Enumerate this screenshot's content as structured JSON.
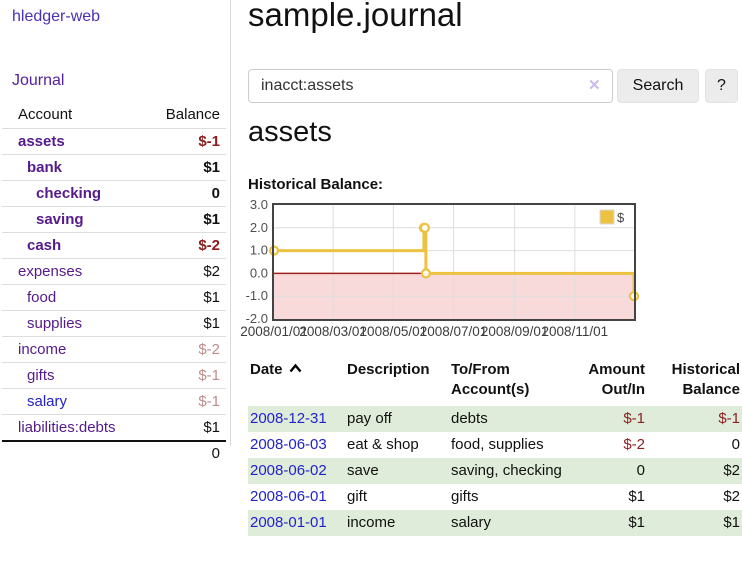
{
  "colors": {
    "brand_purple": "#4a30b4",
    "link_purple": "#551a8b",
    "link_blue": "#2222cc",
    "negative_dark": "#8c1b1b",
    "negative_soft": "#bd8c8c",
    "row_green": "#dfecd9",
    "chart_gold": "#edc240",
    "chart_negative_fill": "#f9dada",
    "chart_zero_line": "#a02020"
  },
  "sidebar": {
    "brand": "hledger-web",
    "journal_label": "Journal",
    "header": {
      "account": "Account",
      "balance": "Balance"
    },
    "rows": [
      {
        "name": "assets",
        "balance": "$-1",
        "depth": 1,
        "emphasis": true,
        "balance_style": "negative",
        "name_style": "purple"
      },
      {
        "name": "bank",
        "balance": "$1",
        "depth": 2,
        "emphasis": true,
        "balance_style": "normal",
        "name_style": "purple"
      },
      {
        "name": "checking",
        "balance": "0",
        "depth": 3,
        "emphasis": true,
        "balance_style": "normal",
        "name_style": "purple"
      },
      {
        "name": "saving",
        "balance": "$1",
        "depth": 3,
        "emphasis": true,
        "balance_style": "normal",
        "name_style": "purple"
      },
      {
        "name": "cash",
        "balance": "$-2",
        "depth": 2,
        "emphasis": true,
        "balance_style": "negative",
        "name_style": "purple"
      },
      {
        "name": "expenses",
        "balance": "$2",
        "depth": 1,
        "emphasis": false,
        "balance_style": "normal",
        "name_style": "purple"
      },
      {
        "name": "food",
        "balance": "$1",
        "depth": 2,
        "emphasis": false,
        "balance_style": "normal",
        "name_style": "purple"
      },
      {
        "name": "supplies",
        "balance": "$1",
        "depth": 2,
        "emphasis": false,
        "balance_style": "normal",
        "name_style": "purple"
      },
      {
        "name": "income",
        "balance": "$-2",
        "depth": 1,
        "emphasis": false,
        "balance_style": "negative-soft",
        "name_style": "purple"
      },
      {
        "name": "gifts",
        "balance": "$-1",
        "depth": 2,
        "emphasis": false,
        "balance_style": "negative-soft",
        "name_style": "purple"
      },
      {
        "name": "salary",
        "balance": "$-1",
        "depth": 2,
        "emphasis": false,
        "balance_style": "negative-soft",
        "name_style": "blue"
      },
      {
        "name": "liabilities:debts",
        "balance": "$1",
        "depth": 1,
        "emphasis": false,
        "balance_style": "normal",
        "name_style": "purple"
      }
    ],
    "total": "0"
  },
  "main": {
    "title": "sample.journal",
    "search": {
      "value": "inacct:assets",
      "clear_icon": "✕",
      "button_label": "Search",
      "help_label": "?"
    },
    "account_heading": "assets",
    "chart_label": "Historical Balance:"
  },
  "chart_data": {
    "type": "line",
    "line_style": "step",
    "title": "Historical Balance",
    "legend": {
      "label": "$",
      "position": "top-right"
    },
    "x_range": [
      "2008-01-01",
      "2008-12-31"
    ],
    "ylim": [
      -2,
      3
    ],
    "grid": true,
    "x_ticks": [
      {
        "date": "2008-01-01",
        "label": "2008/01/01"
      },
      {
        "date": "2008-03-01",
        "label": "2008/03/01"
      },
      {
        "date": "2008-05-01",
        "label": "2008/05/01"
      },
      {
        "date": "2008-07-01",
        "label": "2008/07/01"
      },
      {
        "date": "2008-09-01",
        "label": "2008/09/01"
      },
      {
        "date": "2008-11-01",
        "label": "2008/11/01"
      }
    ],
    "y_ticks": [
      {
        "value": 3,
        "label": "3.0"
      },
      {
        "value": 2,
        "label": "2.0"
      },
      {
        "value": 1,
        "label": "1.0"
      },
      {
        "value": 0,
        "label": "0.0"
      },
      {
        "value": -1,
        "label": "-1.0"
      },
      {
        "value": -2,
        "label": "-2.0"
      }
    ],
    "series": [
      {
        "name": "$",
        "color": "#edc240",
        "points": [
          {
            "date": "2008-01-01",
            "value": 1
          },
          {
            "date": "2008-06-01",
            "value": 2
          },
          {
            "date": "2008-06-02",
            "value": 2
          },
          {
            "date": "2008-06-03",
            "value": 0
          },
          {
            "date": "2008-12-31",
            "value": -1
          }
        ]
      }
    ],
    "negative_region_color": "#f9dada",
    "zero_line_color": "#a02020"
  },
  "register": {
    "headers": {
      "date": "Date",
      "description": "Description",
      "accounts": "To/From Account(s)",
      "amount": "Amount Out/In",
      "balance": "Historical Balance"
    },
    "rows": [
      {
        "date": "2008-12-31",
        "description": "pay off",
        "accounts": "debts",
        "amount": "$-1",
        "balance": "$-1",
        "amount_negative": true,
        "balance_negative": true,
        "shaded": true
      },
      {
        "date": "2008-06-03",
        "description": "eat & shop",
        "accounts": "food, supplies",
        "amount": "$-2",
        "balance": "0",
        "amount_negative": true,
        "balance_negative": false,
        "shaded": false
      },
      {
        "date": "2008-06-02",
        "description": "save",
        "accounts": "saving, checking",
        "amount": "0",
        "balance": "$2",
        "amount_negative": false,
        "balance_negative": false,
        "shaded": true
      },
      {
        "date": "2008-06-01",
        "description": "gift",
        "accounts": "gifts",
        "amount": "$1",
        "balance": "$2",
        "amount_negative": false,
        "balance_negative": false,
        "shaded": false
      },
      {
        "date": "2008-01-01",
        "description": "income",
        "accounts": "salary",
        "amount": "$1",
        "balance": "$1",
        "amount_negative": false,
        "balance_negative": false,
        "shaded": true
      }
    ]
  }
}
